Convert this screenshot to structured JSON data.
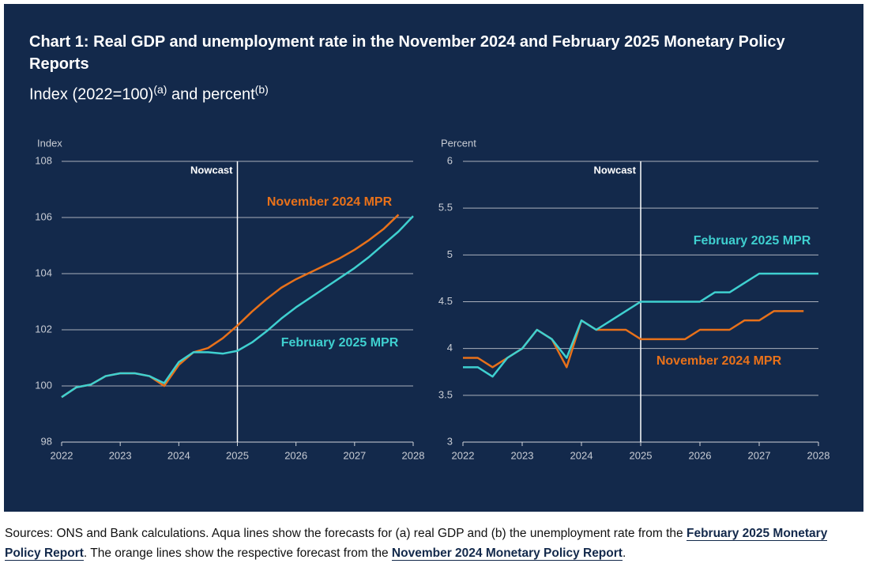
{
  "header": {
    "title": "Chart 1: Real GDP and unemployment rate in the November 2024 and February 2025 Monetary Policy Reports",
    "subtitle": [
      "Index (2022=100)",
      "(a)",
      " and percent",
      "(b)"
    ]
  },
  "chart_data": [
    {
      "type": "line",
      "y_label": "Index",
      "xlim": [
        2022,
        2028
      ],
      "xticks": [
        2022,
        2023,
        2024,
        2025,
        2026,
        2027,
        2028
      ],
      "ylim": [
        98,
        108
      ],
      "yticks": [
        98,
        100,
        102,
        104,
        106,
        108
      ],
      "grid": true,
      "annotations": [
        {
          "text": "Nowcast",
          "x": 2025
        }
      ],
      "series": [
        {
          "name": "November 2024 MPR",
          "color": "#e8711a",
          "x": [
            2022,
            2022.25,
            2022.5,
            2022.75,
            2023,
            2023.25,
            2023.5,
            2023.75,
            2024,
            2024.25,
            2024.5,
            2024.75,
            2025,
            2025.25,
            2025.5,
            2025.75,
            2026,
            2026.25,
            2026.5,
            2026.75,
            2027,
            2027.25,
            2027.5,
            2027.75
          ],
          "values": [
            99.6,
            99.95,
            100.05,
            100.35,
            100.45,
            100.45,
            100.35,
            100.0,
            100.75,
            101.2,
            101.35,
            101.7,
            102.15,
            102.65,
            103.1,
            103.5,
            103.8,
            104.05,
            104.3,
            104.55,
            104.85,
            105.2,
            105.6,
            106.1
          ]
        },
        {
          "name": "February 2025 MPR",
          "color": "#3fd0d0",
          "x": [
            2022,
            2022.25,
            2022.5,
            2022.75,
            2023,
            2023.25,
            2023.5,
            2023.75,
            2024,
            2024.25,
            2024.5,
            2024.75,
            2025,
            2025.25,
            2025.5,
            2025.75,
            2026,
            2026.25,
            2026.5,
            2026.75,
            2027,
            2027.25,
            2027.5,
            2027.75,
            2028
          ],
          "values": [
            99.6,
            99.95,
            100.05,
            100.35,
            100.45,
            100.45,
            100.35,
            100.1,
            100.85,
            101.2,
            101.2,
            101.15,
            101.25,
            101.55,
            101.95,
            102.4,
            102.8,
            103.15,
            103.5,
            103.85,
            104.2,
            104.6,
            105.05,
            105.5,
            106.05
          ]
        }
      ]
    },
    {
      "type": "line",
      "y_label": "Percent",
      "xlim": [
        2022,
        2028
      ],
      "xticks": [
        2022,
        2023,
        2024,
        2025,
        2026,
        2027,
        2028
      ],
      "ylim": [
        3,
        6
      ],
      "yticks": [
        3,
        3.5,
        4,
        4.5,
        5,
        5.5,
        6
      ],
      "grid": true,
      "annotations": [
        {
          "text": "Nowcast",
          "x": 2025
        }
      ],
      "series": [
        {
          "name": "November 2024 MPR",
          "color": "#e8711a",
          "x": [
            2022,
            2022.25,
            2022.5,
            2022.75,
            2023,
            2023.25,
            2023.5,
            2023.75,
            2024,
            2024.25,
            2024.5,
            2024.75,
            2025,
            2025.25,
            2025.5,
            2025.75,
            2026,
            2026.25,
            2026.5,
            2026.75,
            2027,
            2027.25,
            2027.5,
            2027.75
          ],
          "values": [
            3.9,
            3.9,
            3.8,
            3.9,
            4.0,
            4.2,
            4.1,
            3.8,
            4.3,
            4.2,
            4.2,
            4.2,
            4.1,
            4.1,
            4.1,
            4.1,
            4.2,
            4.2,
            4.2,
            4.3,
            4.3,
            4.4,
            4.4,
            4.4
          ]
        },
        {
          "name": "February 2025 MPR",
          "color": "#3fd0d0",
          "x": [
            2022,
            2022.25,
            2022.5,
            2022.75,
            2023,
            2023.25,
            2023.5,
            2023.75,
            2024,
            2024.25,
            2024.5,
            2024.75,
            2025,
            2025.25,
            2025.5,
            2025.75,
            2026,
            2026.25,
            2026.5,
            2026.75,
            2027,
            2027.25,
            2027.5,
            2027.75,
            2028
          ],
          "values": [
            3.8,
            3.8,
            3.7,
            3.9,
            4.0,
            4.2,
            4.1,
            3.9,
            4.3,
            4.2,
            4.3,
            4.4,
            4.5,
            4.5,
            4.5,
            4.5,
            4.5,
            4.6,
            4.6,
            4.7,
            4.8,
            4.8,
            4.8,
            4.8,
            4.8
          ]
        }
      ]
    }
  ],
  "footer": {
    "parts": [
      "Sources: ONS and Bank calculations. Aqua lines show the forecasts for (a) real GDP and (b) the unemployment rate from the ",
      "February 2025 Monetary Policy Report",
      ". The orange lines show the respective forecast from the ",
      "November 2024 Monetary Policy Report",
      "."
    ]
  }
}
